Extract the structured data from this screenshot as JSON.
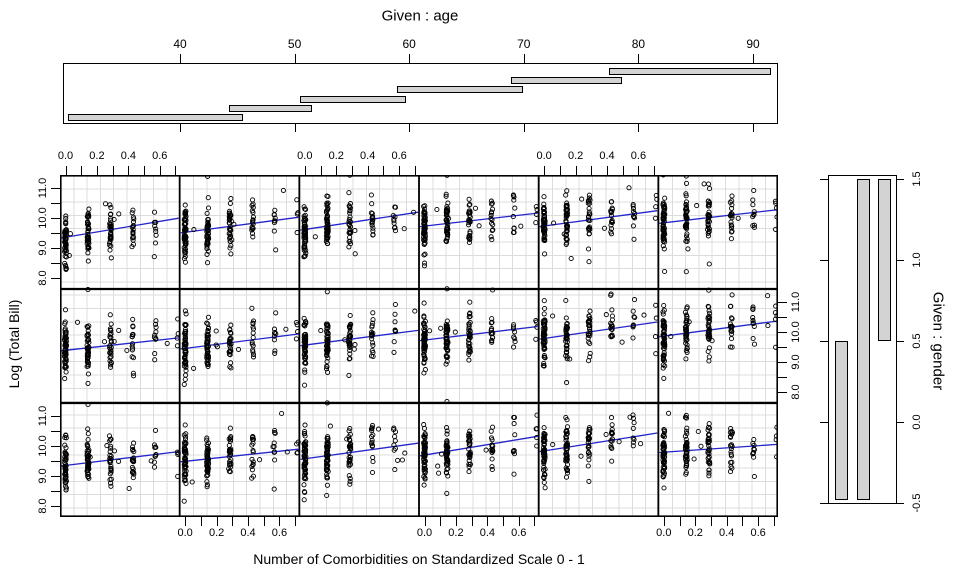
{
  "colors": {
    "regression_line": "#2424cc",
    "shingle_fill": "#d3d3d3",
    "shingle_border": "#000000",
    "grid_line": "#dcdcdc",
    "panel_border": "#000000",
    "text": "#000000",
    "background": "#ffffff"
  },
  "chart_data": {
    "type": "coplot-scatter",
    "xlabel": "Number of Comorbidities on Standardized Scale 0 - 1",
    "ylabel": "Log (Total Bill)",
    "grid": {
      "rows": 3,
      "cols": 6
    },
    "x_axis": {
      "labeled_ticks": [
        0.0,
        0.2,
        0.4,
        0.6
      ],
      "minor_tick_step": 0.1,
      "tick_min": 0.0,
      "tick_max": 0.7,
      "panel_range": [
        -0.035,
        0.727
      ],
      "top_ticks_on_columns": [
        1,
        3,
        5
      ],
      "bottom_ticks_on_columns": [
        2,
        4,
        6
      ]
    },
    "y_axis": {
      "labeled_ticks": [
        8.0,
        9.0,
        10.0,
        11.0
      ],
      "minor_tick_step": 0.5,
      "tick_min": 8.0,
      "tick_max": 11.0,
      "panel_range": [
        7.63,
        11.43
      ],
      "left_ticks_on_rows": [
        1,
        3
      ],
      "right_ticks_on_rows": [
        2
      ]
    },
    "given_age": {
      "title": "Given : age",
      "ticks": [
        40,
        50,
        60,
        70,
        80,
        90
      ],
      "range": [
        29.8,
        92.2
      ],
      "shingles": [
        [
          30.2,
          45.5
        ],
        [
          44.3,
          51.5
        ],
        [
          50.5,
          59.7
        ],
        [
          58.9,
          69.9
        ],
        [
          68.9,
          78.6
        ],
        [
          77.4,
          91.6
        ]
      ]
    },
    "given_gender": {
      "title": "Given : gender",
      "ticks": [
        -0.5,
        0.0,
        0.5,
        1.0,
        1.5
      ],
      "range": [
        -0.54,
        1.52
      ],
      "shingles": [
        [
          -0.5,
          0.5
        ],
        [
          -0.5,
          1.5
        ],
        [
          0.5,
          1.5
        ]
      ]
    },
    "scatter": {
      "marker": "open-circle",
      "bands_x": [
        0.0,
        0.143,
        0.286,
        0.429,
        0.571,
        0.714
      ],
      "band_counts": [
        56,
        44,
        30,
        17,
        9,
        4
      ],
      "y_sd": 0.42,
      "stray_points_per_panel": 6,
      "seed": 7,
      "panels": [
        {
          "row": 1,
          "col": 1,
          "line": [
            9.33,
            9.99
          ]
        },
        {
          "row": 1,
          "col": 2,
          "line": [
            9.5,
            10.02
          ]
        },
        {
          "row": 1,
          "col": 3,
          "line": [
            9.59,
            10.19
          ]
        },
        {
          "row": 1,
          "col": 4,
          "line": [
            9.71,
            10.16
          ]
        },
        {
          "row": 1,
          "col": 5,
          "line": [
            9.71,
            10.24
          ]
        },
        {
          "row": 1,
          "col": 6,
          "line": [
            9.82,
            10.27
          ]
        },
        {
          "row": 2,
          "col": 1,
          "line": [
            9.37,
            9.8
          ]
        },
        {
          "row": 2,
          "col": 2,
          "line": [
            9.43,
            9.93
          ]
        },
        {
          "row": 2,
          "col": 3,
          "line": [
            9.54,
            10.05
          ]
        },
        {
          "row": 2,
          "col": 4,
          "line": [
            9.71,
            10.18
          ]
        },
        {
          "row": 2,
          "col": 5,
          "line": [
            9.76,
            10.33
          ]
        },
        {
          "row": 2,
          "col": 6,
          "line": [
            9.84,
            10.36
          ]
        },
        {
          "row": 3,
          "col": 1,
          "line": [
            9.33,
            9.81
          ]
        },
        {
          "row": 3,
          "col": 2,
          "line": [
            9.47,
            9.89
          ]
        },
        {
          "row": 3,
          "col": 3,
          "line": [
            9.55,
            10.09
          ]
        },
        {
          "row": 3,
          "col": 4,
          "line": [
            9.67,
            10.32
          ]
        },
        {
          "row": 3,
          "col": 5,
          "line": [
            9.81,
            10.43
          ]
        },
        {
          "row": 3,
          "col": 6,
          "line": [
            9.78,
            10.05
          ]
        }
      ]
    }
  }
}
